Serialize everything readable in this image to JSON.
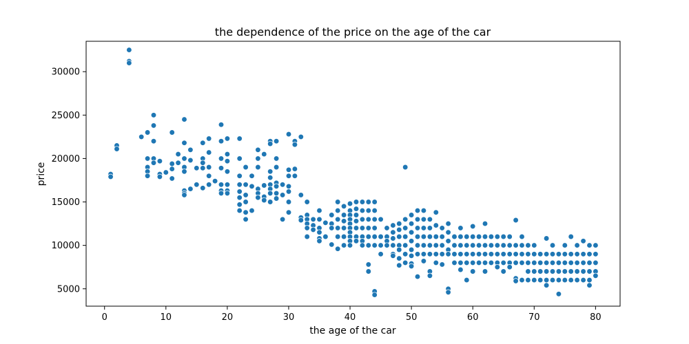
{
  "chart_data": {
    "type": "scatter",
    "title": "the dependence of the price on the age of the car",
    "xlabel": "the age of the car",
    "ylabel": "price",
    "xlim": [
      -3,
      84
    ],
    "ylim": [
      3000,
      33500
    ],
    "xticks": [
      0,
      10,
      20,
      30,
      40,
      50,
      60,
      70,
      80
    ],
    "yticks": [
      5000,
      10000,
      15000,
      20000,
      25000,
      30000
    ],
    "grid": false,
    "marker_color": "#1f77b4",
    "points": [
      [
        1,
        18200
      ],
      [
        1,
        17900
      ],
      [
        2,
        21500
      ],
      [
        2,
        21100
      ],
      [
        4,
        32500
      ],
      [
        4,
        31200
      ],
      [
        4,
        31000
      ],
      [
        6,
        22500
      ],
      [
        7,
        23000
      ],
      [
        7,
        20000
      ],
      [
        7,
        19000
      ],
      [
        7,
        18500
      ],
      [
        7,
        18000
      ],
      [
        8,
        25000
      ],
      [
        8,
        23800
      ],
      [
        8,
        22000
      ],
      [
        8,
        20000
      ],
      [
        8,
        19500
      ],
      [
        9,
        19700
      ],
      [
        9,
        18200
      ],
      [
        9,
        17900
      ],
      [
        10,
        18400
      ],
      [
        11,
        23000
      ],
      [
        11,
        19400
      ],
      [
        11,
        18800
      ],
      [
        11,
        17700
      ],
      [
        12,
        20500
      ],
      [
        12,
        19500
      ],
      [
        13,
        24500
      ],
      [
        13,
        21800
      ],
      [
        13,
        20000
      ],
      [
        13,
        19000
      ],
      [
        13,
        18500
      ],
      [
        13,
        16300
      ],
      [
        13,
        16000
      ],
      [
        13,
        15800
      ],
      [
        14,
        21000
      ],
      [
        14,
        19800
      ],
      [
        14,
        16500
      ],
      [
        15,
        18900
      ],
      [
        15,
        17000
      ],
      [
        16,
        21800
      ],
      [
        16,
        20000
      ],
      [
        16,
        19500
      ],
      [
        16,
        18900
      ],
      [
        16,
        16600
      ],
      [
        17,
        22300
      ],
      [
        17,
        20700
      ],
      [
        17,
        19000
      ],
      [
        17,
        18000
      ],
      [
        17,
        17000
      ],
      [
        18,
        17400
      ],
      [
        19,
        23900
      ],
      [
        19,
        22000
      ],
      [
        19,
        20000
      ],
      [
        19,
        18900
      ],
      [
        19,
        17000
      ],
      [
        19,
        16300
      ],
      [
        19,
        16000
      ],
      [
        20,
        22300
      ],
      [
        20,
        20500
      ],
      [
        20,
        19700
      ],
      [
        20,
        18500
      ],
      [
        20,
        17000
      ],
      [
        20,
        16300
      ],
      [
        20,
        16000
      ],
      [
        22,
        22300
      ],
      [
        22,
        20000
      ],
      [
        22,
        18000
      ],
      [
        22,
        17000
      ],
      [
        22,
        16200
      ],
      [
        22,
        15500
      ],
      [
        22,
        14700
      ],
      [
        22,
        14000
      ],
      [
        23,
        19000
      ],
      [
        23,
        17000
      ],
      [
        23,
        15800
      ],
      [
        23,
        15000
      ],
      [
        23,
        13800
      ],
      [
        23,
        13000
      ],
      [
        24,
        18000
      ],
      [
        24,
        16800
      ],
      [
        24,
        14000
      ],
      [
        25,
        21000
      ],
      [
        25,
        20000
      ],
      [
        25,
        19000
      ],
      [
        25,
        16500
      ],
      [
        25,
        16000
      ],
      [
        25,
        15500
      ],
      [
        26,
        20500
      ],
      [
        26,
        16900
      ],
      [
        26,
        15600
      ],
      [
        26,
        15200
      ],
      [
        27,
        22000
      ],
      [
        27,
        21700
      ],
      [
        27,
        18500
      ],
      [
        27,
        17800
      ],
      [
        27,
        17000
      ],
      [
        27,
        16500
      ],
      [
        27,
        16000
      ],
      [
        27,
        15000
      ],
      [
        28,
        22000
      ],
      [
        28,
        20000
      ],
      [
        28,
        19000
      ],
      [
        28,
        17200
      ],
      [
        28,
        16800
      ],
      [
        28,
        16000
      ],
      [
        28,
        15400
      ],
      [
        29,
        17000
      ],
      [
        29,
        15800
      ],
      [
        29,
        13000
      ],
      [
        30,
        22800
      ],
      [
        30,
        18700
      ],
      [
        30,
        18000
      ],
      [
        30,
        16800
      ],
      [
        30,
        16200
      ],
      [
        30,
        15000
      ],
      [
        30,
        13800
      ],
      [
        31,
        22000
      ],
      [
        31,
        21600
      ],
      [
        31,
        18800
      ],
      [
        31,
        18000
      ],
      [
        32,
        22500
      ],
      [
        32,
        15800
      ],
      [
        32,
        13200
      ],
      [
        32,
        12900
      ],
      [
        33,
        15000
      ],
      [
        33,
        13500
      ],
      [
        33,
        13000
      ],
      [
        33,
        12500
      ],
      [
        33,
        12000
      ],
      [
        33,
        11000
      ],
      [
        34,
        13000
      ],
      [
        34,
        12300
      ],
      [
        34,
        11800
      ],
      [
        35,
        14000
      ],
      [
        35,
        13000
      ],
      [
        35,
        12000
      ],
      [
        35,
        11500
      ],
      [
        35,
        10800
      ],
      [
        35,
        10500
      ],
      [
        36,
        12600
      ],
      [
        36,
        11000
      ],
      [
        37,
        13500
      ],
      [
        37,
        12500
      ],
      [
        37,
        12000
      ],
      [
        37,
        10100
      ],
      [
        38,
        15000
      ],
      [
        38,
        14000
      ],
      [
        38,
        13000
      ],
      [
        38,
        12000
      ],
      [
        38,
        11000
      ],
      [
        38,
        9600
      ],
      [
        39,
        14500
      ],
      [
        39,
        13500
      ],
      [
        39,
        12800
      ],
      [
        39,
        12000
      ],
      [
        39,
        11000
      ],
      [
        39,
        10000
      ],
      [
        40,
        14800
      ],
      [
        40,
        14000
      ],
      [
        40,
        13500
      ],
      [
        40,
        13000
      ],
      [
        40,
        12500
      ],
      [
        40,
        12000
      ],
      [
        40,
        11500
      ],
      [
        40,
        11000
      ],
      [
        40,
        10500
      ],
      [
        40,
        10000
      ],
      [
        41,
        15000
      ],
      [
        41,
        14200
      ],
      [
        41,
        13500
      ],
      [
        41,
        12800
      ],
      [
        41,
        12000
      ],
      [
        41,
        11000
      ],
      [
        41,
        10500
      ],
      [
        42,
        15000
      ],
      [
        42,
        14000
      ],
      [
        42,
        13000
      ],
      [
        42,
        12000
      ],
      [
        42,
        11000
      ],
      [
        42,
        10500
      ],
      [
        42,
        10000
      ],
      [
        43,
        15000
      ],
      [
        43,
        14000
      ],
      [
        43,
        13000
      ],
      [
        43,
        12000
      ],
      [
        43,
        11000
      ],
      [
        43,
        10000
      ],
      [
        43,
        7800
      ],
      [
        43,
        7000
      ],
      [
        44,
        15000
      ],
      [
        44,
        14000
      ],
      [
        44,
        13000
      ],
      [
        44,
        12000
      ],
      [
        44,
        11000
      ],
      [
        44,
        10000
      ],
      [
        44,
        4700
      ],
      [
        44,
        4300
      ],
      [
        45,
        13000
      ],
      [
        45,
        11000
      ],
      [
        45,
        10000
      ],
      [
        45,
        9000
      ],
      [
        46,
        12000
      ],
      [
        46,
        11000
      ],
      [
        46,
        10500
      ],
      [
        46,
        10000
      ],
      [
        47,
        12300
      ],
      [
        47,
        11500
      ],
      [
        47,
        10800
      ],
      [
        47,
        10000
      ],
      [
        47,
        9000
      ],
      [
        47,
        8800
      ],
      [
        48,
        12500
      ],
      [
        48,
        11800
      ],
      [
        48,
        11000
      ],
      [
        48,
        10000
      ],
      [
        48,
        9500
      ],
      [
        48,
        8500
      ],
      [
        48,
        7700
      ],
      [
        49,
        19000
      ],
      [
        49,
        13000
      ],
      [
        49,
        12000
      ],
      [
        49,
        11000
      ],
      [
        49,
        10000
      ],
      [
        49,
        9000
      ],
      [
        49,
        8000
      ],
      [
        50,
        13500
      ],
      [
        50,
        12500
      ],
      [
        50,
        11500
      ],
      [
        50,
        10500
      ],
      [
        50,
        9500
      ],
      [
        50,
        8800
      ],
      [
        50,
        7900
      ],
      [
        50,
        7600
      ],
      [
        51,
        14000
      ],
      [
        51,
        13000
      ],
      [
        51,
        12000
      ],
      [
        51,
        11000
      ],
      [
        51,
        10000
      ],
      [
        51,
        9000
      ],
      [
        51,
        6400
      ],
      [
        52,
        14000
      ],
      [
        52,
        13000
      ],
      [
        52,
        12000
      ],
      [
        52,
        11000
      ],
      [
        52,
        10000
      ],
      [
        52,
        9000
      ],
      [
        52,
        8200
      ],
      [
        53,
        13000
      ],
      [
        53,
        12000
      ],
      [
        53,
        11000
      ],
      [
        53,
        10000
      ],
      [
        53,
        9000
      ],
      [
        53,
        7000
      ],
      [
        53,
        6500
      ],
      [
        54,
        13800
      ],
      [
        54,
        12300
      ],
      [
        54,
        11000
      ],
      [
        54,
        10000
      ],
      [
        54,
        9000
      ],
      [
        54,
        8000
      ],
      [
        55,
        12000
      ],
      [
        55,
        11000
      ],
      [
        55,
        10000
      ],
      [
        55,
        9000
      ],
      [
        55,
        7800
      ],
      [
        56,
        12500
      ],
      [
        56,
        11500
      ],
      [
        56,
        10500
      ],
      [
        56,
        9500
      ],
      [
        56,
        9000
      ],
      [
        56,
        5000
      ],
      [
        56,
        4600
      ],
      [
        57,
        11000
      ],
      [
        57,
        10000
      ],
      [
        57,
        9000
      ],
      [
        57,
        8000
      ],
      [
        58,
        12000
      ],
      [
        58,
        11000
      ],
      [
        58,
        10000
      ],
      [
        58,
        9000
      ],
      [
        58,
        8000
      ],
      [
        58,
        7200
      ],
      [
        59,
        11000
      ],
      [
        59,
        10000
      ],
      [
        59,
        9000
      ],
      [
        59,
        8000
      ],
      [
        59,
        6000
      ],
      [
        60,
        12200
      ],
      [
        60,
        11000
      ],
      [
        60,
        10000
      ],
      [
        60,
        9000
      ],
      [
        60,
        8000
      ],
      [
        60,
        7000
      ],
      [
        61,
        11000
      ],
      [
        61,
        10000
      ],
      [
        61,
        9000
      ],
      [
        61,
        8000
      ],
      [
        62,
        12500
      ],
      [
        62,
        11000
      ],
      [
        62,
        10000
      ],
      [
        62,
        9000
      ],
      [
        62,
        8000
      ],
      [
        62,
        7000
      ],
      [
        63,
        11000
      ],
      [
        63,
        10000
      ],
      [
        63,
        9000
      ],
      [
        63,
        8000
      ],
      [
        64,
        11000
      ],
      [
        64,
        10000
      ],
      [
        64,
        9000
      ],
      [
        64,
        8000
      ],
      [
        64,
        7500
      ],
      [
        65,
        11000
      ],
      [
        65,
        10000
      ],
      [
        65,
        9000
      ],
      [
        65,
        8000
      ],
      [
        65,
        7000
      ],
      [
        66,
        11000
      ],
      [
        66,
        10000
      ],
      [
        66,
        9000
      ],
      [
        66,
        8000
      ],
      [
        66,
        7500
      ],
      [
        67,
        12900
      ],
      [
        67,
        10000
      ],
      [
        67,
        9000
      ],
      [
        67,
        8000
      ],
      [
        67,
        6200
      ],
      [
        67,
        5900
      ],
      [
        68,
        11000
      ],
      [
        68,
        10000
      ],
      [
        68,
        9000
      ],
      [
        68,
        8000
      ],
      [
        68,
        6000
      ],
      [
        69,
        10000
      ],
      [
        69,
        9000
      ],
      [
        69,
        8000
      ],
      [
        69,
        7000
      ],
      [
        69,
        6000
      ],
      [
        70,
        10000
      ],
      [
        70,
        9000
      ],
      [
        70,
        8000
      ],
      [
        70,
        7000
      ],
      [
        70,
        6000
      ],
      [
        71,
        9000
      ],
      [
        71,
        8000
      ],
      [
        71,
        7000
      ],
      [
        71,
        6000
      ],
      [
        72,
        10800
      ],
      [
        72,
        9000
      ],
      [
        72,
        8000
      ],
      [
        72,
        7000
      ],
      [
        72,
        6000
      ],
      [
        72,
        5400
      ],
      [
        73,
        10000
      ],
      [
        73,
        9000
      ],
      [
        73,
        8000
      ],
      [
        73,
        7000
      ],
      [
        73,
        6000
      ],
      [
        74,
        9000
      ],
      [
        74,
        8000
      ],
      [
        74,
        7000
      ],
      [
        74,
        6000
      ],
      [
        74,
        4400
      ],
      [
        75,
        10000
      ],
      [
        75,
        9000
      ],
      [
        75,
        8000
      ],
      [
        75,
        7000
      ],
      [
        75,
        6000
      ],
      [
        76,
        11000
      ],
      [
        76,
        9000
      ],
      [
        76,
        8000
      ],
      [
        76,
        7000
      ],
      [
        76,
        6000
      ],
      [
        77,
        10000
      ],
      [
        77,
        9000
      ],
      [
        77,
        8000
      ],
      [
        77,
        7000
      ],
      [
        77,
        6000
      ],
      [
        78,
        10500
      ],
      [
        78,
        9000
      ],
      [
        78,
        8000
      ],
      [
        78,
        7000
      ],
      [
        78,
        6000
      ],
      [
        79,
        10000
      ],
      [
        79,
        9000
      ],
      [
        79,
        8000
      ],
      [
        79,
        7000
      ],
      [
        79,
        6000
      ],
      [
        79,
        5400
      ],
      [
        80,
        10000
      ],
      [
        80,
        9000
      ],
      [
        80,
        8000
      ],
      [
        80,
        7000
      ],
      [
        80,
        6500
      ]
    ]
  }
}
